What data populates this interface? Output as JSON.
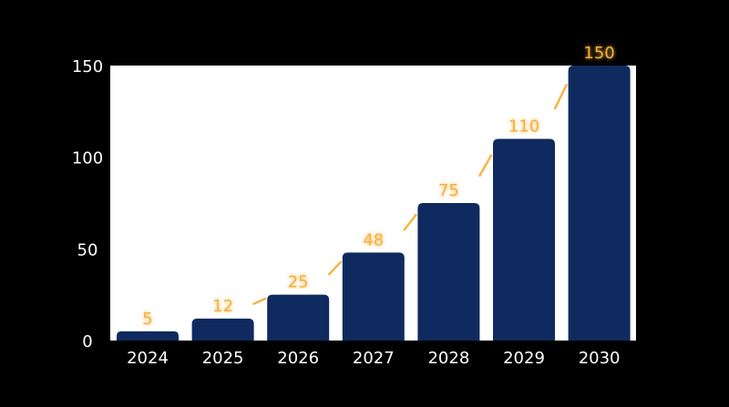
{
  "chart_data": {
    "type": "bar",
    "categories": [
      "2024",
      "2025",
      "2026",
      "2027",
      "2028",
      "2029",
      "2030"
    ],
    "values": [
      5,
      12,
      25,
      48,
      75,
      110,
      150
    ],
    "data_labels": [
      "5",
      "12",
      "25",
      "48",
      "75",
      "110",
      "150"
    ],
    "yticks": [
      0,
      50,
      100,
      150
    ],
    "ylim": [
      0,
      150
    ],
    "title": "",
    "xlabel": "",
    "ylabel": "",
    "grid": false,
    "legend": "none",
    "trend_line": "dashed connector between bar tops",
    "colors": {
      "page_background": "#000000",
      "plot_background": "#ffffff",
      "bar": "#0f2a5f",
      "accent": "#f5b03c",
      "text": "#ffffff"
    }
  }
}
